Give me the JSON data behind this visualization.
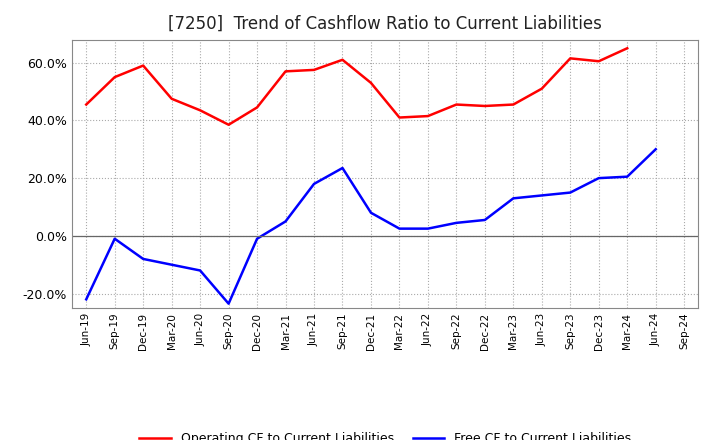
{
  "title": "[7250]  Trend of Cashflow Ratio to Current Liabilities",
  "title_fontsize": 12,
  "x_labels": [
    "Jun-19",
    "Sep-19",
    "Dec-19",
    "Mar-20",
    "Jun-20",
    "Sep-20",
    "Dec-20",
    "Mar-21",
    "Jun-21",
    "Sep-21",
    "Dec-21",
    "Mar-22",
    "Jun-22",
    "Sep-22",
    "Dec-22",
    "Mar-23",
    "Jun-23",
    "Sep-23",
    "Dec-23",
    "Mar-24",
    "Jun-24",
    "Sep-24"
  ],
  "operating_cf": [
    45.5,
    55.0,
    59.0,
    47.5,
    43.5,
    38.5,
    44.5,
    57.0,
    57.5,
    61.0,
    53.0,
    41.0,
    41.5,
    45.5,
    45.0,
    45.5,
    51.0,
    61.5,
    60.5,
    65.0,
    null,
    null
  ],
  "free_cf": [
    -22.0,
    -1.0,
    -8.0,
    -10.0,
    -12.0,
    -23.5,
    -1.0,
    5.0,
    18.0,
    23.5,
    8.0,
    2.5,
    2.5,
    4.5,
    5.5,
    13.0,
    14.0,
    15.0,
    20.0,
    20.5,
    30.0,
    null
  ],
  "operating_color": "#ff0000",
  "free_color": "#0000ff",
  "background_color": "#ffffff",
  "grid_color": "#aaaaaa",
  "ylim": [
    -25,
    68
  ],
  "yticks": [
    -20.0,
    0.0,
    20.0,
    40.0,
    60.0
  ],
  "legend_labels": [
    "Operating CF to Current Liabilities",
    "Free CF to Current Liabilities"
  ]
}
